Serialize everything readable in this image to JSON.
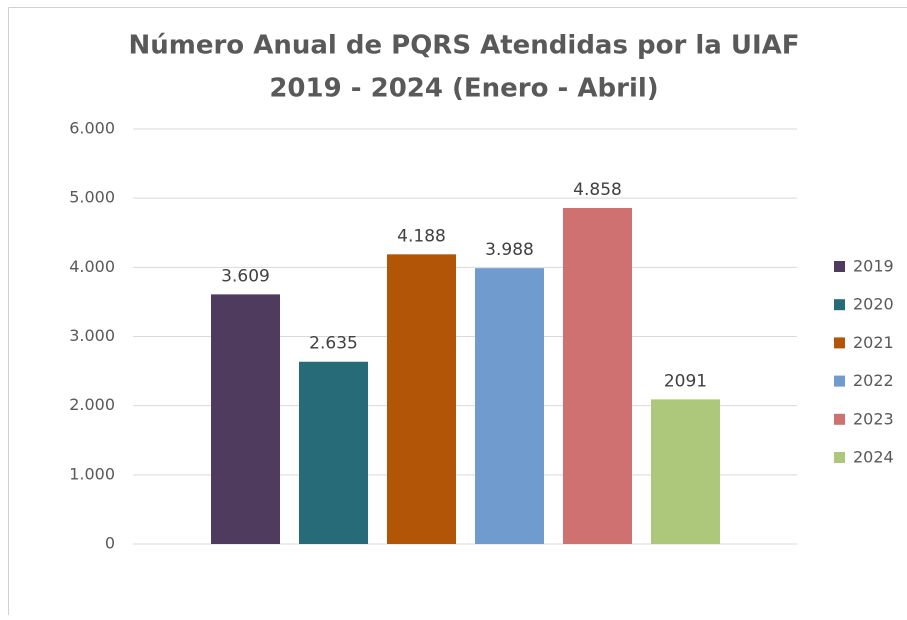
{
  "chart_data": {
    "type": "bar",
    "title": [
      "Número Anual de PQRS Atendidas por la UIAF",
      "2019 - 2024 (Enero - Abril)"
    ],
    "categories": [
      null
    ],
    "series": [
      {
        "name": "2019",
        "color": "#4e3b5e",
        "values": [
          3609
        ],
        "value_labels": [
          "3.609"
        ]
      },
      {
        "name": "2020",
        "color": "#276a78",
        "values": [
          2635
        ],
        "value_labels": [
          "2.635"
        ]
      },
      {
        "name": "2021",
        "color": "#b35506",
        "values": [
          4188
        ],
        "value_labels": [
          "4.188"
        ]
      },
      {
        "name": "2022",
        "color": "#6f9bcf",
        "values": [
          3988
        ],
        "value_labels": [
          "3.988"
        ]
      },
      {
        "name": "2023",
        "color": "#cf7170",
        "values": [
          4858
        ],
        "value_labels": [
          "4.858"
        ]
      },
      {
        "name": "2024",
        "color": "#adc87a",
        "values": [
          2091
        ]
      }
    ],
    "ylim": [
      0,
      6000
    ],
    "yticks": [
      0,
      {
        "value": 1000,
        "label": "1.000"
      },
      {
        "value": 2000,
        "label": "2.000"
      },
      {
        "value": 3000,
        "label": "3.000"
      },
      {
        "value": 4000,
        "label": "4.000"
      },
      {
        "value": 5000,
        "label": "5.000"
      },
      {
        "value": 6000,
        "label": "6.000"
      }
    ],
    "grid": true,
    "legend": "right"
  }
}
